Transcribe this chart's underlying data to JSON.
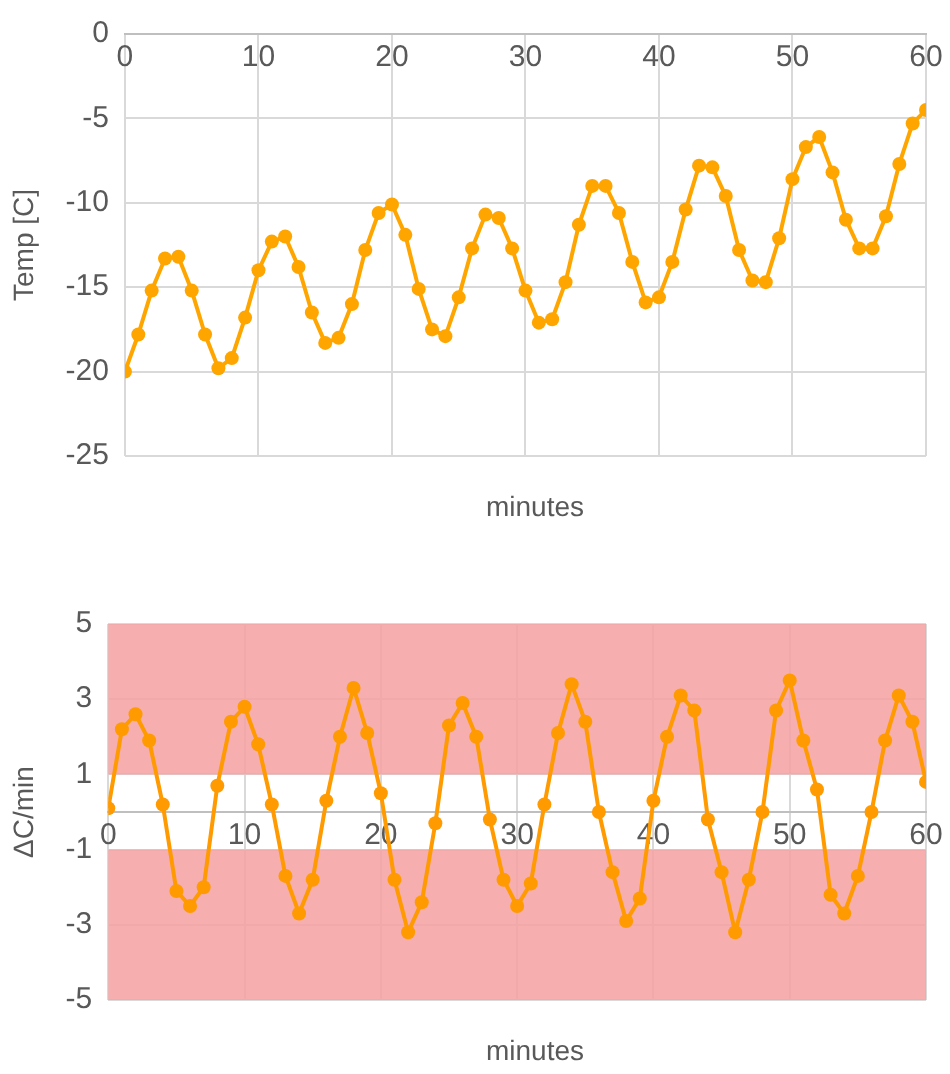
{
  "chart_data": [
    {
      "type": "line",
      "ylabel": "Temp [C]",
      "xlabel": "minutes",
      "x": [
        0,
        1,
        2,
        3,
        4,
        5,
        6,
        7,
        8,
        9,
        10,
        11,
        12,
        13,
        14,
        15,
        16,
        17,
        18,
        19,
        20,
        21,
        22,
        23,
        24,
        25,
        26,
        27,
        28,
        29,
        30,
        31,
        32,
        33,
        34,
        35,
        36,
        37,
        38,
        39,
        40,
        41,
        42,
        43,
        44,
        45,
        46,
        47,
        48,
        49,
        50,
        51,
        52,
        53,
        54,
        55,
        56,
        57,
        58,
        59,
        60
      ],
      "series": [
        {
          "color": "#ffa500",
          "values": [
            -20,
            -17.8,
            -15.2,
            -13.3,
            -13.2,
            -15.2,
            -17.8,
            -19.8,
            -19.2,
            -16.8,
            -14,
            -12.3,
            -12,
            -13.8,
            -16.5,
            -18.3,
            -18,
            -16,
            -12.8,
            -10.6,
            -10.1,
            -11.9,
            -15.1,
            -17.5,
            -17.9,
            -15.6,
            -12.7,
            -10.7,
            -10.9,
            -12.7,
            -15.2,
            -17.1,
            -16.9,
            -14.7,
            -11.3,
            -9,
            -9,
            -10.6,
            -13.5,
            -15.9,
            -15.6,
            -13.5,
            -10.4,
            -7.8,
            -7.9,
            -9.6,
            -12.8,
            -14.6,
            -14.7,
            -12.1,
            -8.6,
            -6.7,
            -6.1,
            -8.2,
            -11,
            -12.7,
            -12.7,
            -10.8,
            -7.7,
            -5.3,
            -4.5
          ]
        }
      ],
      "xlim": [
        0,
        60
      ],
      "xticks": [
        0,
        10,
        20,
        30,
        40,
        50,
        60
      ],
      "ylim": [
        -25,
        0
      ],
      "yticks": [
        -25,
        -20,
        -15,
        -10,
        -5,
        0
      ],
      "grid": true,
      "marker": "circle"
    },
    {
      "type": "line",
      "ylabel": "ΔC/min",
      "xlabel": "minutes",
      "x": [
        0,
        1,
        2,
        3,
        4,
        5,
        6,
        7,
        8,
        9,
        10,
        11,
        12,
        13,
        14,
        15,
        16,
        17,
        18,
        19,
        20,
        21,
        22,
        23,
        24,
        25,
        26,
        27,
        28,
        29,
        30,
        31,
        32,
        33,
        34,
        35,
        36,
        37,
        38,
        39,
        40,
        41,
        42,
        43,
        44,
        45,
        46,
        47,
        48,
        49,
        50,
        51,
        52,
        53,
        54,
        55,
        56,
        57,
        58,
        59,
        60
      ],
      "series": [
        {
          "color": "#ff9a00",
          "values": [
            0.1,
            2.2,
            2.6,
            1.9,
            0.2,
            -2.1,
            -2.5,
            -2,
            0.7,
            2.4,
            2.8,
            1.8,
            0.2,
            -1.7,
            -2.7,
            -1.8,
            0.3,
            2,
            3.3,
            2.1,
            0.5,
            -1.8,
            -3.2,
            -2.4,
            -0.3,
            2.3,
            2.9,
            2,
            -0.2,
            -1.8,
            -2.5,
            -1.9,
            0.2,
            2.1,
            3.4,
            2.4,
            0,
            -1.6,
            -2.9,
            -2.3,
            0.3,
            2,
            3.1,
            2.7,
            -0.2,
            -1.6,
            -3.2,
            -1.8,
            0,
            2.7,
            3.5,
            1.9,
            0.6,
            -2.2,
            -2.7,
            -1.7,
            0,
            1.9,
            3.1,
            2.4,
            0.8
          ]
        }
      ],
      "bands": [
        {
          "axis": "y",
          "from": 1,
          "to": 5,
          "color": "#f4a0a0"
        },
        {
          "axis": "y",
          "from": -5,
          "to": -1,
          "color": "#f4a0a0"
        }
      ],
      "xlim": [
        0,
        60
      ],
      "xticks": [
        0,
        10,
        20,
        30,
        40,
        50,
        60
      ],
      "ylim": [
        -5,
        5
      ],
      "yticks": [
        -5,
        -3,
        -1,
        1,
        3,
        5
      ],
      "grid": true,
      "marker": "circle"
    }
  ]
}
